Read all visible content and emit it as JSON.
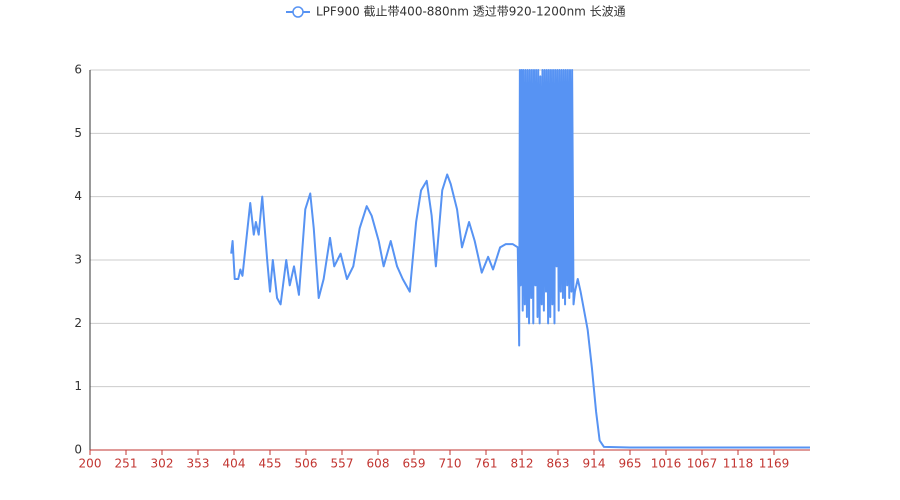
{
  "chart_data": {
    "type": "line",
    "x": [
      400,
      402,
      405,
      410,
      413,
      416,
      427,
      432,
      435,
      439,
      444,
      451,
      455,
      459,
      465,
      470,
      478,
      483,
      489,
      496,
      505,
      512,
      517,
      524,
      531,
      540,
      546,
      555,
      564,
      573,
      582,
      592,
      599,
      609,
      616,
      626,
      635,
      643,
      653,
      662,
      669,
      677,
      684,
      690,
      699,
      706,
      711,
      720,
      727,
      737,
      745,
      755,
      764,
      771,
      781,
      789,
      799,
      806,
      808,
      809,
      810,
      811.5,
      813,
      814,
      816,
      817,
      819,
      820,
      822,
      823,
      825,
      826,
      828,
      829,
      831,
      832,
      834,
      835,
      837,
      838,
      840,
      841,
      843,
      844,
      846,
      847,
      849,
      850,
      852,
      853,
      855,
      856,
      858,
      859,
      861,
      862,
      864,
      865,
      867,
      868,
      870,
      871,
      873,
      874,
      876,
      877,
      879,
      880,
      882,
      883,
      885,
      887,
      891,
      895,
      900,
      905,
      911,
      917,
      922,
      928,
      965,
      1016,
      1067,
      1118,
      1169,
      1220
    ],
    "series": [
      {
        "name": "LPF900 截止带400-880nm 透过带920-1200nm 长波通",
        "color": "#5793f3",
        "values": [
          3.1,
          3.3,
          2.7,
          2.7,
          2.85,
          2.75,
          3.9,
          3.4,
          3.6,
          3.4,
          4.0,
          3.0,
          2.5,
          3.0,
          2.4,
          2.3,
          3.0,
          2.6,
          2.9,
          2.45,
          3.8,
          4.05,
          3.5,
          2.4,
          2.7,
          3.35,
          2.9,
          3.1,
          2.7,
          2.9,
          3.5,
          3.85,
          3.7,
          3.3,
          2.9,
          3.3,
          2.9,
          2.7,
          2.5,
          3.6,
          4.1,
          4.25,
          3.7,
          2.9,
          4.1,
          4.35,
          4.2,
          3.8,
          3.2,
          3.6,
          3.3,
          2.8,
          3.05,
          2.85,
          3.2,
          3.25,
          3.25,
          3.2,
          1.65,
          6,
          2.6,
          6,
          2.2,
          6,
          2.3,
          6,
          2.1,
          6,
          2.0,
          6,
          2.4,
          6,
          2.0,
          6,
          2.6,
          6,
          2.1,
          6,
          2.0,
          5.9,
          2.3,
          6,
          2.2,
          6,
          2.5,
          6,
          2.0,
          6,
          2.1,
          6,
          2.3,
          6,
          2.0,
          6,
          2.9,
          6,
          2.2,
          6,
          2.5,
          6,
          2.4,
          6,
          2.3,
          6,
          2.6,
          6,
          2.4,
          6,
          2.5,
          6,
          2.3,
          2.5,
          2.7,
          2.5,
          2.2,
          1.9,
          1.3,
          0.6,
          0.15,
          0.05,
          0.04,
          0.04,
          0.04,
          0.04,
          0.04,
          0.04
        ]
      }
    ],
    "xlim": [
      200,
      1220
    ],
    "xticks": [
      200,
      251,
      302,
      353,
      404,
      455,
      506,
      557,
      608,
      659,
      710,
      761,
      812,
      863,
      914,
      965,
      1016,
      1067,
      1118,
      1169
    ],
    "ylim": [
      0,
      6
    ],
    "yticks": [
      0,
      1,
      2,
      3,
      4,
      5,
      6
    ],
    "grid": true
  }
}
